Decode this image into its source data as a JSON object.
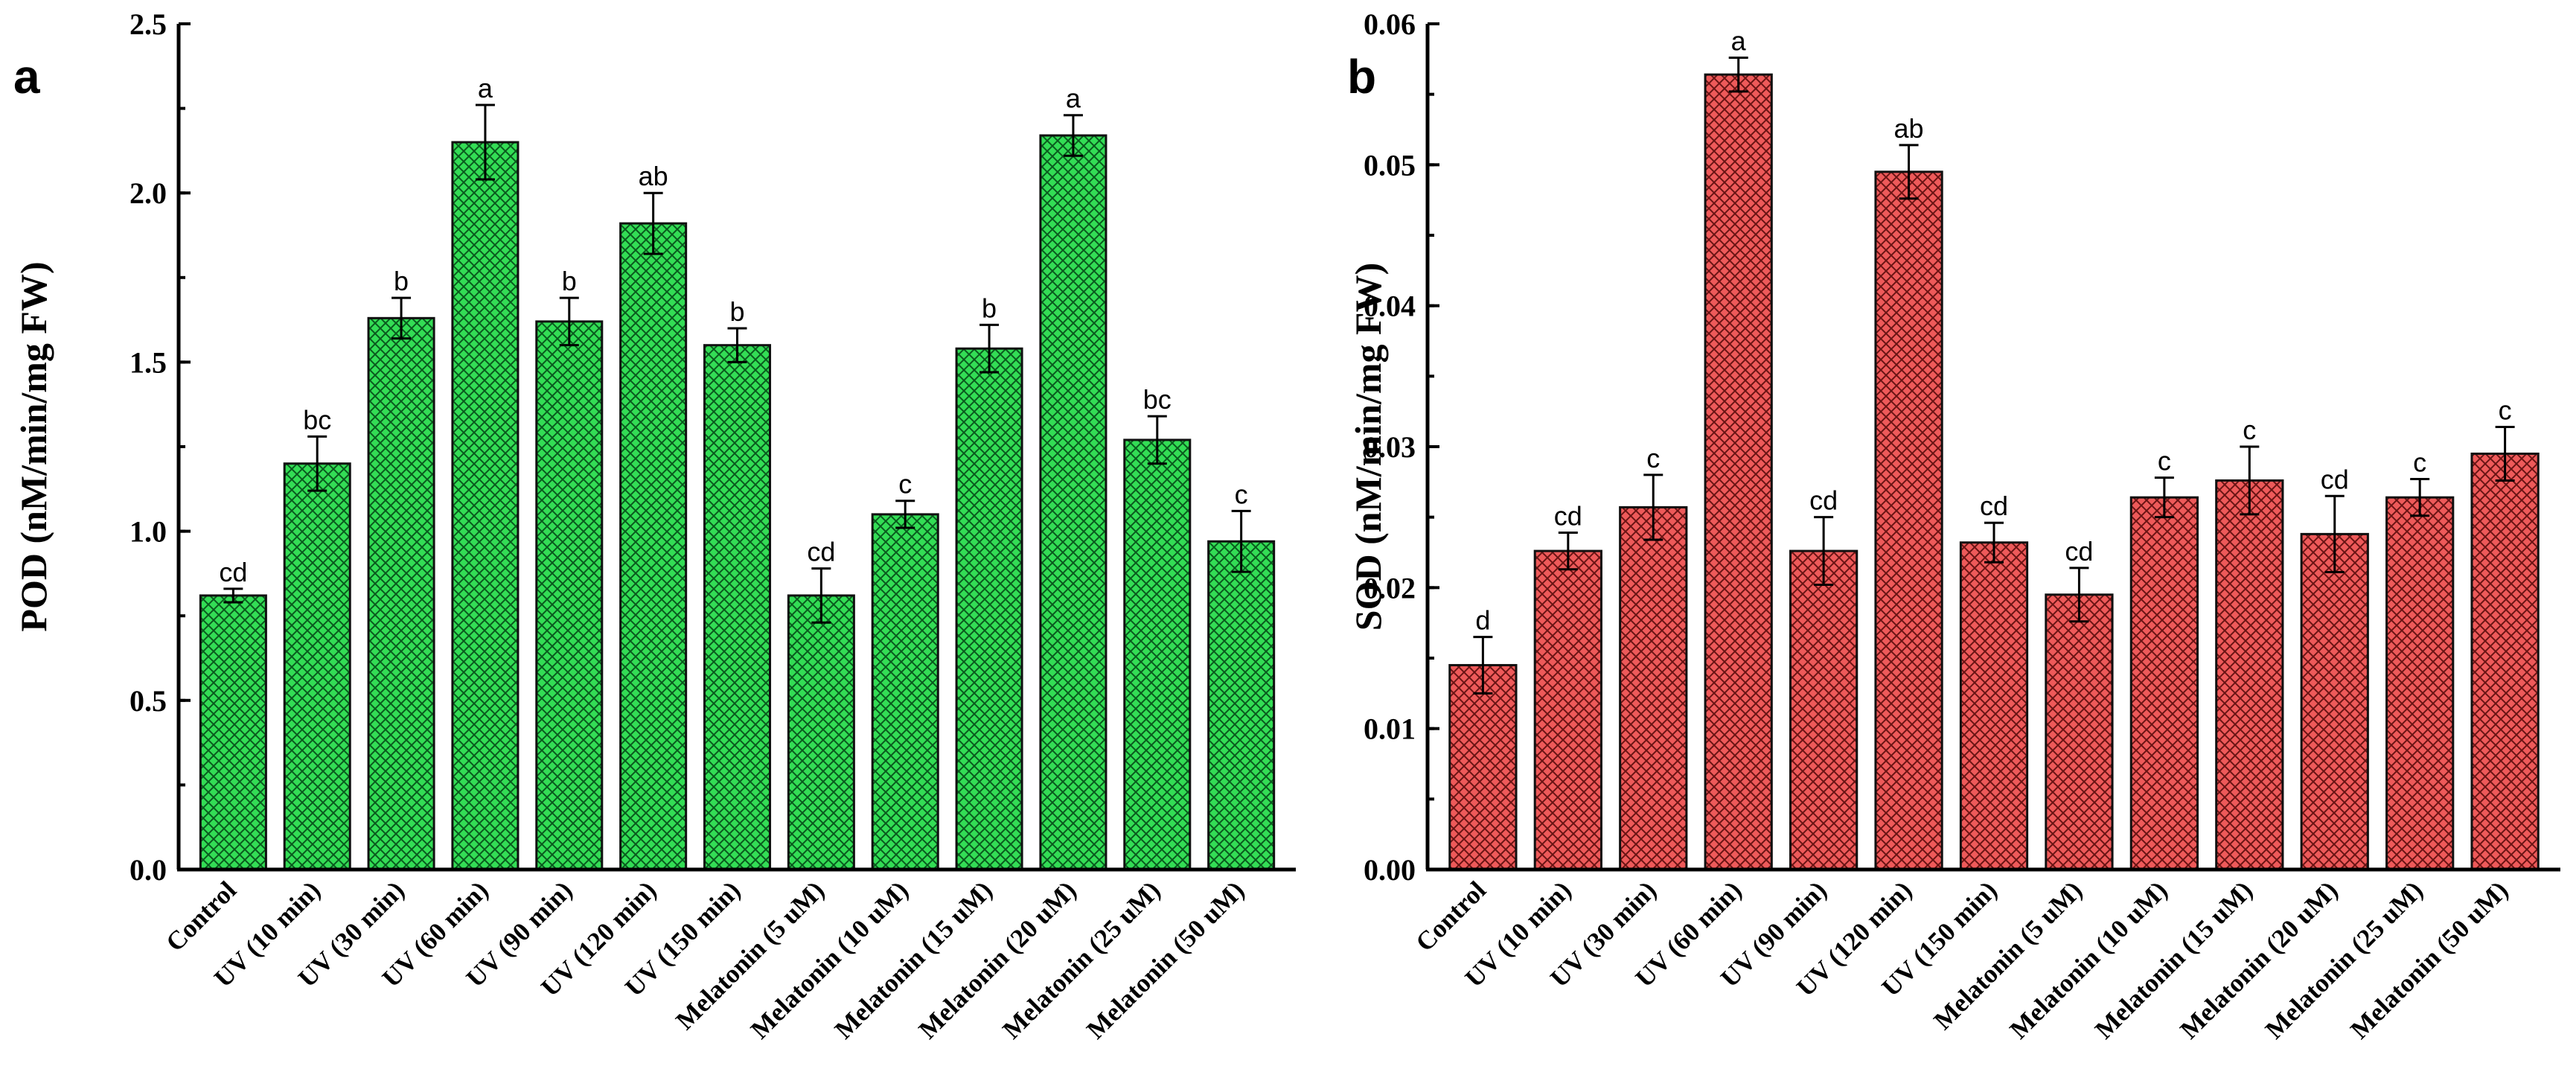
{
  "chart_data": [
    {
      "type": "bar",
      "panel_letter": "a",
      "title": "",
      "xlabel": "",
      "ylabel": "POD (nM/min/mg FW)",
      "ylim": [
        0,
        2.5
      ],
      "yticks": [
        "0.0",
        "0.5",
        "1.0",
        "1.5",
        "2.0",
        "2.5"
      ],
      "tick_values": [
        0,
        0.5,
        1.0,
        1.5,
        2.0,
        2.5
      ],
      "minor_step": 0.25,
      "bar_color": "#33dd55",
      "hatch_color": "#0a5a1e",
      "grid": false,
      "categories": [
        "Control",
        "UV (10 min)",
        "UV (30 min)",
        "UV (60 min)",
        "UV (90 min)",
        "UV (120 min)",
        "UV (150 min)",
        "Melatonin (5 uM)",
        "Melatonin (10 uM)",
        "Melatonin (15 uM)",
        "Melatonin (20 uM)",
        "Melatonin (25 uM)",
        "Melatonin (50 uM)"
      ],
      "values": [
        0.81,
        1.2,
        1.63,
        2.15,
        1.62,
        1.91,
        1.55,
        0.81,
        1.05,
        1.54,
        2.17,
        1.27,
        0.97
      ],
      "errors": [
        0.02,
        0.08,
        0.06,
        0.11,
        0.07,
        0.09,
        0.05,
        0.08,
        0.04,
        0.07,
        0.06,
        0.07,
        0.09
      ],
      "significance": [
        "cd",
        "bc",
        "b",
        "a",
        "b",
        "ab",
        "b",
        "cd",
        "c",
        "b",
        "a",
        "bc",
        "c"
      ]
    },
    {
      "type": "bar",
      "panel_letter": "b",
      "title": "",
      "xlabel": "",
      "ylabel": "SOD (nM/min/mg FW)",
      "ylim": [
        0,
        0.06
      ],
      "yticks": [
        "0.00",
        "0.01",
        "0.02",
        "0.03",
        "0.04",
        "0.05",
        "0.06"
      ],
      "tick_values": [
        0,
        0.01,
        0.02,
        0.03,
        0.04,
        0.05,
        0.06
      ],
      "minor_step": 0.005,
      "bar_color": "#ee5a5a",
      "hatch_color": "#6a1414",
      "grid": false,
      "categories": [
        "Control",
        "UV (10 min)",
        "UV (30 min)",
        "UV (60 min)",
        "UV (90 min)",
        "UV (120 min)",
        "UV (150 min)",
        "Melatonin (5 uM)",
        "Melatonin (10 uM)",
        "Melatonin (15 uM)",
        "Melatonin (20 uM)",
        "Melatonin (25 uM)",
        "Melatonin (50 uM)"
      ],
      "values": [
        0.0145,
        0.0226,
        0.0257,
        0.0564,
        0.0226,
        0.0495,
        0.0232,
        0.0195,
        0.0264,
        0.0276,
        0.0238,
        0.0264,
        0.0295
      ],
      "errors": [
        0.002,
        0.0013,
        0.0023,
        0.0012,
        0.0024,
        0.0019,
        0.0014,
        0.0019,
        0.0014,
        0.0024,
        0.0027,
        0.0013,
        0.0019
      ],
      "significance": [
        "d",
        "cd",
        "c",
        "a",
        "cd",
        "ab",
        "cd",
        "cd",
        "c",
        "c",
        "cd",
        "c",
        "c"
      ]
    }
  ]
}
